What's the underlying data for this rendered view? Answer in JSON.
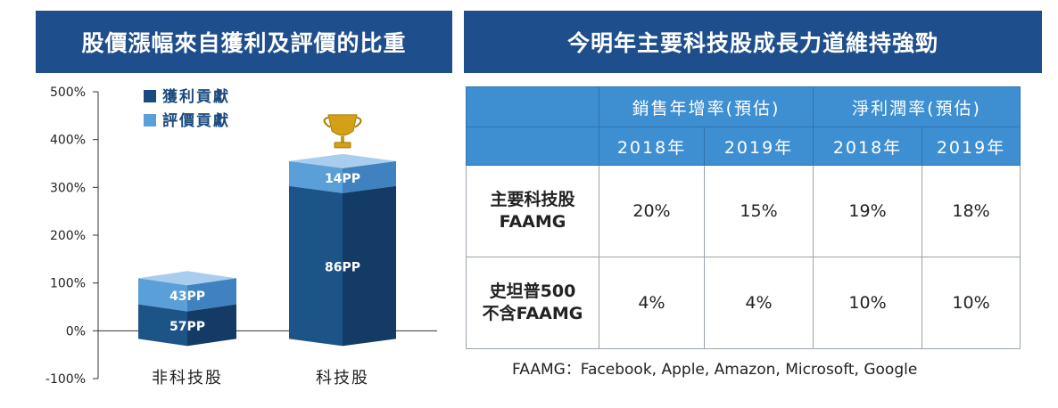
{
  "left_panel": {
    "title": "股價漲幅來自獲利及評價的比重"
  },
  "right_panel": {
    "title": "今明年主要科技股成長力道維持強勁",
    "table": {
      "group_headers": [
        "銷售年增率(預估)",
        "淨利潤率(預估)"
      ],
      "year_headers": [
        "2018年",
        "2019年",
        "2018年",
        "2019年"
      ],
      "rows": [
        {
          "label_line1": "主要科技股",
          "label_line2": "FAAMG",
          "values": [
            "20%",
            "15%",
            "19%",
            "18%"
          ]
        },
        {
          "label_line1": "史坦普500",
          "label_line2": "不含FAAMG",
          "values": [
            "4%",
            "4%",
            "10%",
            "10%"
          ]
        }
      ]
    },
    "footnote": "FAAMG：Facebook, Apple, Amazon, Microsoft, Google"
  },
  "chart_data": {
    "type": "bar",
    "stacked": true,
    "categories": [
      "非科技股",
      "科技股"
    ],
    "series": [
      {
        "name": "獲利貢獻",
        "color": "#1a4a7f",
        "values": [
          57,
          86
        ],
        "labels": [
          "57PP",
          "86PP"
        ]
      },
      {
        "name": "評價貢獻",
        "color": "#5a9fd8",
        "values": [
          43,
          14
        ],
        "labels": [
          "43PP",
          "14PP"
        ]
      }
    ],
    "totals_pct": [
      110,
      355
    ],
    "ylim": [
      -100,
      500
    ],
    "yticks": [
      "-100%",
      "0%",
      "100%",
      "200%",
      "300%",
      "400%",
      "500%"
    ],
    "ytick_values": [
      -100,
      0,
      100,
      200,
      300,
      400,
      500
    ],
    "legend_position": "top-left",
    "annotations": [
      "trophy-icon above 科技股 bar"
    ]
  }
}
